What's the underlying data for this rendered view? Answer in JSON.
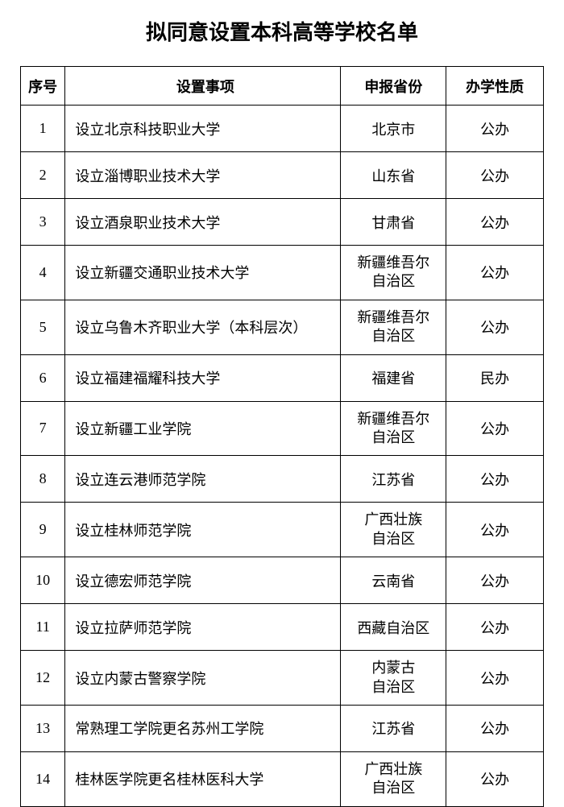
{
  "title": "拟同意设置本科高等学校名单",
  "table": {
    "headers": {
      "num": "序号",
      "item": "设置事项",
      "province": "申报省份",
      "type": "办学性质"
    },
    "rows": [
      {
        "num": "1",
        "item": "设立北京科技职业大学",
        "province": "北京市",
        "type": "公办"
      },
      {
        "num": "2",
        "item": "设立淄博职业技术大学",
        "province": "山东省",
        "type": "公办"
      },
      {
        "num": "3",
        "item": "设立酒泉职业技术大学",
        "province": "甘肃省",
        "type": "公办"
      },
      {
        "num": "4",
        "item": "设立新疆交通职业技术大学",
        "province_l1": "新疆维吾尔",
        "province_l2": "自治区",
        "type": "公办"
      },
      {
        "num": "5",
        "item": "设立乌鲁木齐职业大学（本科层次）",
        "province_l1": "新疆维吾尔",
        "province_l2": "自治区",
        "type": "公办"
      },
      {
        "num": "6",
        "item": "设立福建福耀科技大学",
        "province": "福建省",
        "type": "民办"
      },
      {
        "num": "7",
        "item": "设立新疆工业学院",
        "province_l1": "新疆维吾尔",
        "province_l2": "自治区",
        "type": "公办"
      },
      {
        "num": "8",
        "item": "设立连云港师范学院",
        "province": "江苏省",
        "type": "公办"
      },
      {
        "num": "9",
        "item": "设立桂林师范学院",
        "province_l1": "广西壮族",
        "province_l2": "自治区",
        "type": "公办"
      },
      {
        "num": "10",
        "item": "设立德宏师范学院",
        "province": "云南省",
        "type": "公办"
      },
      {
        "num": "11",
        "item": "设立拉萨师范学院",
        "province": "西藏自治区",
        "type": "公办"
      },
      {
        "num": "12",
        "item": "设立内蒙古警察学院",
        "province_l1": "内蒙古",
        "province_l2": "自治区",
        "type": "公办"
      },
      {
        "num": "13",
        "item": "常熟理工学院更名苏州工学院",
        "province": "江苏省",
        "type": "公办"
      },
      {
        "num": "14",
        "item": "桂林医学院更名桂林医科大学",
        "province_l1": "广西壮族",
        "province_l2": "自治区",
        "type": "公办"
      }
    ]
  }
}
